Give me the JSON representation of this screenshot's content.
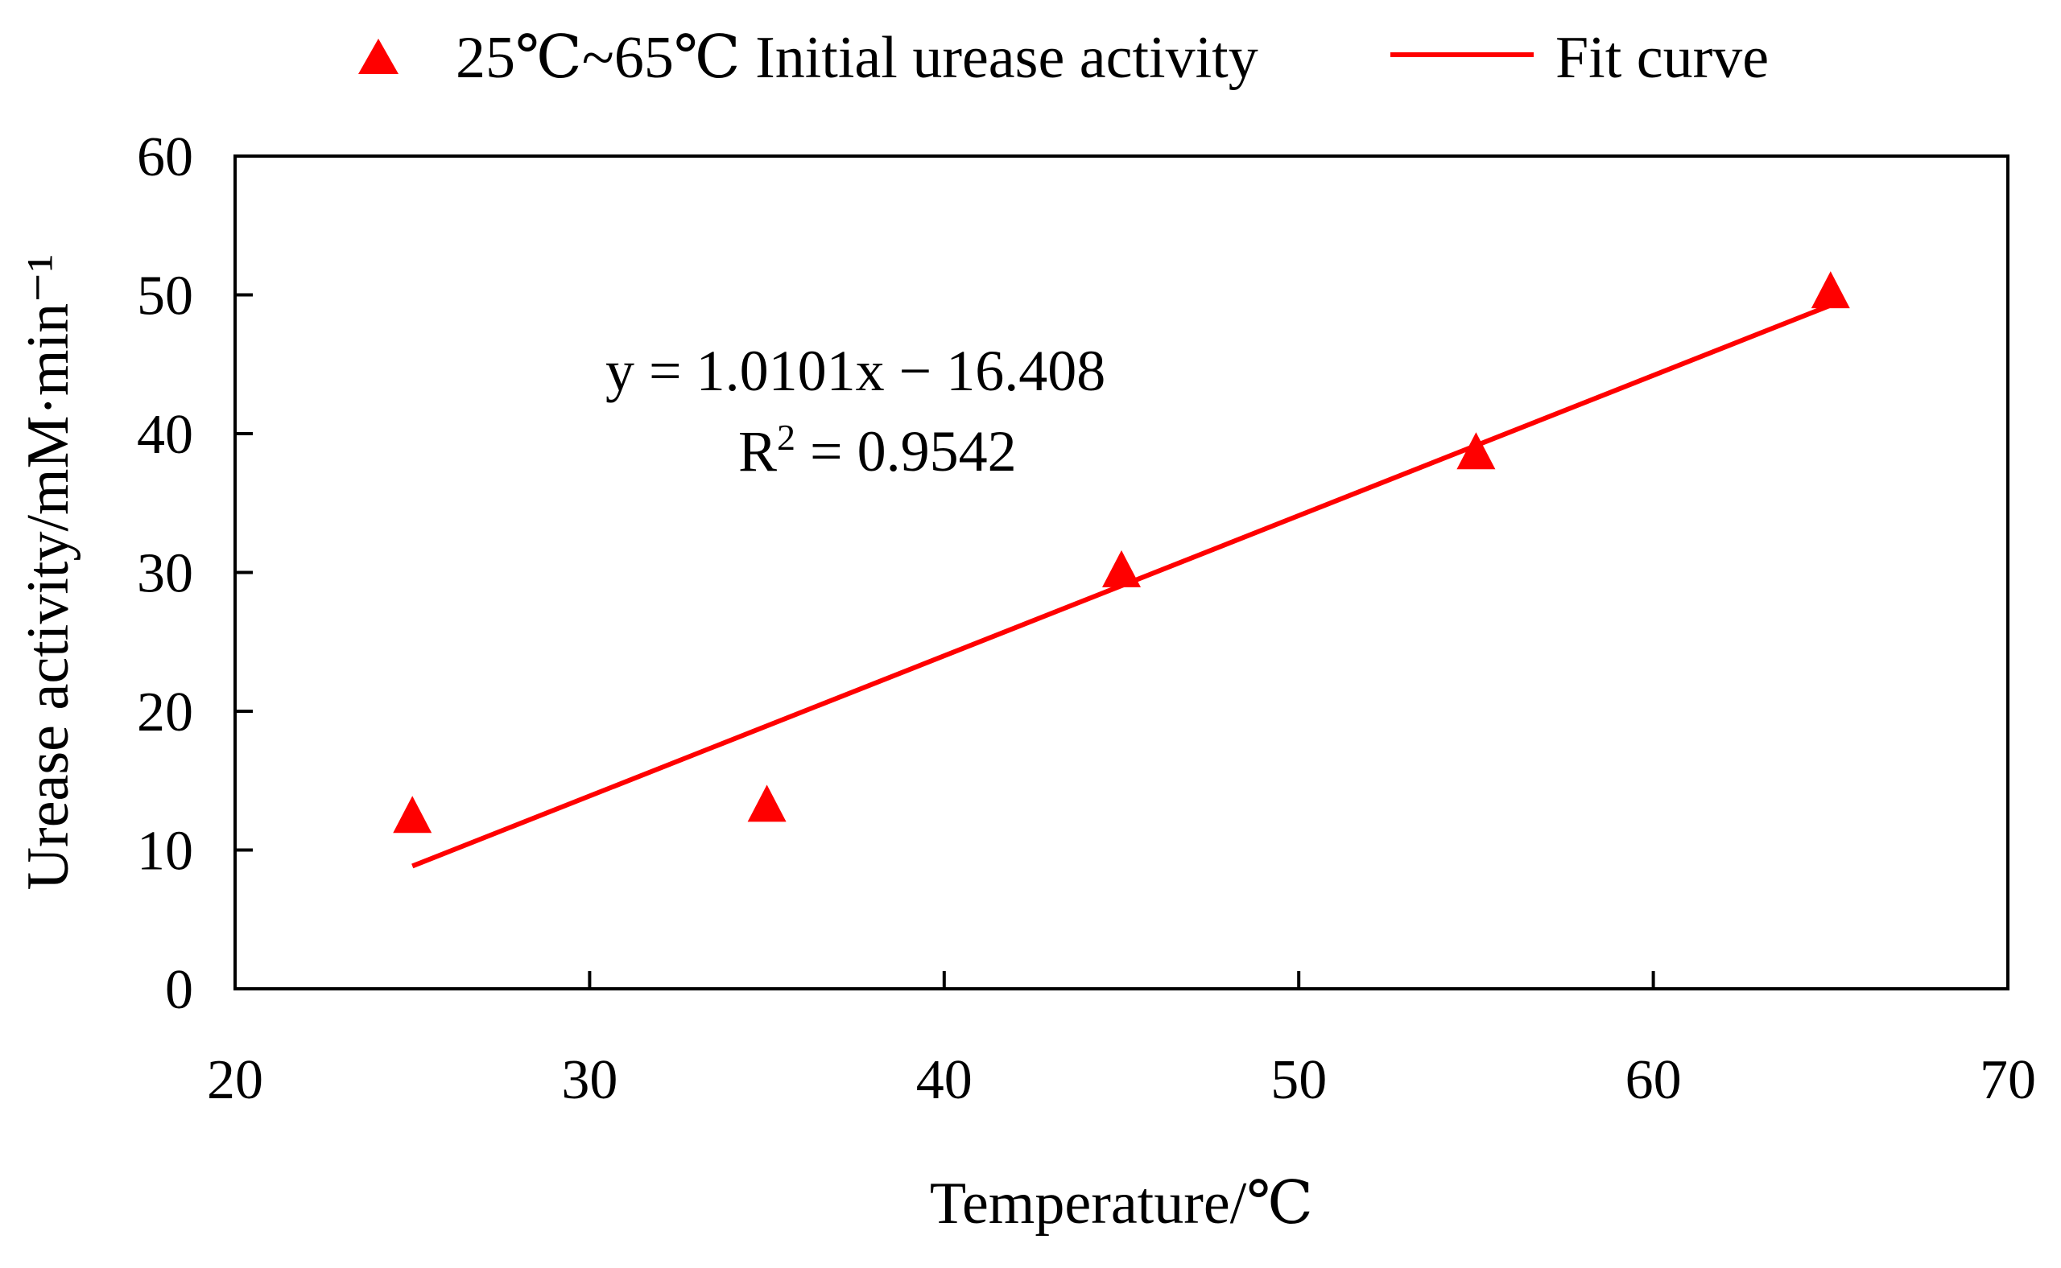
{
  "colors": {
    "series": "#ff0000",
    "axis": "#000000",
    "background": "#ffffff"
  },
  "legend": {
    "marker_label": "25℃~65℃ Initial urease activity",
    "line_label": "Fit curve",
    "placement": "top-center"
  },
  "chart_data": {
    "type": "scatter",
    "title": "",
    "xlabel": "Temperature/℃",
    "ylabel": "Urease activity/mM·min⁻¹",
    "xlim": [
      20,
      70
    ],
    "ylim": [
      0,
      60
    ],
    "xticks": [
      20,
      30,
      40,
      50,
      60,
      70
    ],
    "yticks": [
      0,
      10,
      20,
      30,
      40,
      50,
      60
    ],
    "grid": false,
    "series": [
      {
        "name": "25℃~65℃ Initial urease activity",
        "marker": "triangle",
        "color": "#ff0000",
        "x": [
          25,
          35,
          45,
          55,
          65
        ],
        "y": [
          12.3,
          13.1,
          30.0,
          38.5,
          50.1
        ]
      },
      {
        "name": "Fit curve",
        "kind": "line",
        "color": "#ff0000",
        "slope": 1.0101,
        "intercept": -16.408,
        "x_range": [
          25,
          65
        ]
      }
    ],
    "annotations": {
      "equation": "y = 1.0101x − 16.408",
      "r_squared_prefix": "R",
      "r_squared_exp": "2",
      "r_squared_value": " = 0.9542"
    }
  }
}
